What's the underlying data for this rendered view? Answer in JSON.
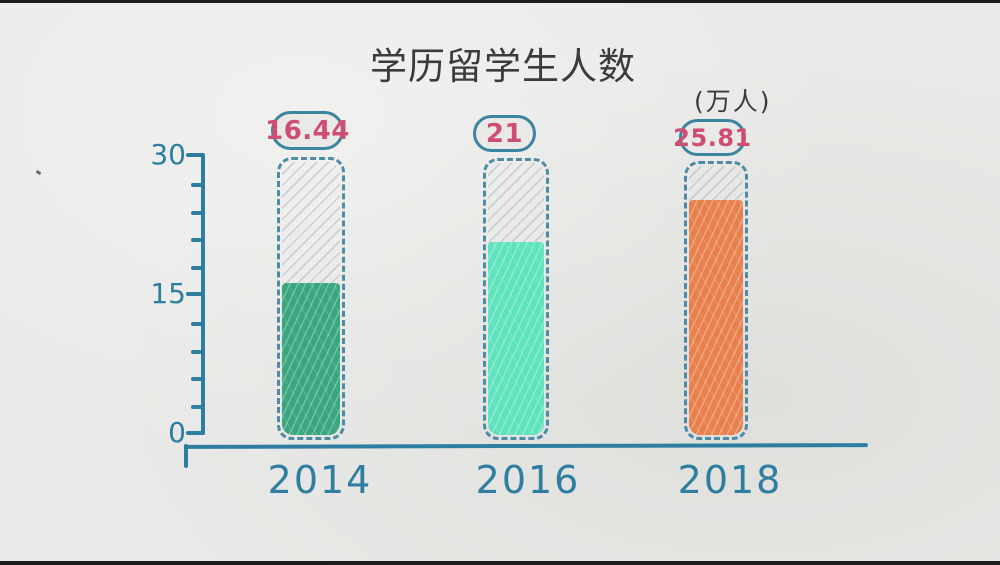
{
  "chart_data": {
    "type": "bar",
    "title": "学历留学生人数",
    "unit_label": "(万人)",
    "categories": [
      "2014",
      "2016",
      "2018"
    ],
    "values": [
      16.44,
      21,
      25.81
    ],
    "value_labels": [
      "16.44",
      "21",
      "25.81"
    ],
    "ylim": [
      0,
      30
    ],
    "ytick_labels": [
      "30",
      "15",
      "0"
    ],
    "minor_tick_step": 3,
    "grid": false,
    "legend": "none",
    "style": "hand-drawn bars; each bar is a dashed outlined container up to 30 with hatched empty top and colored scribble fill",
    "colors": {
      "background": "#e9e9e7",
      "title_text": "#3b3b3b",
      "axis": "#2d7ea0",
      "bar_outline": "#4d8ba6",
      "pill_border": "#3c85a0",
      "value_text": "#cf4d72",
      "bar_fills": [
        "#38a67e",
        "#5ee3bd",
        "#e8804d"
      ]
    }
  }
}
